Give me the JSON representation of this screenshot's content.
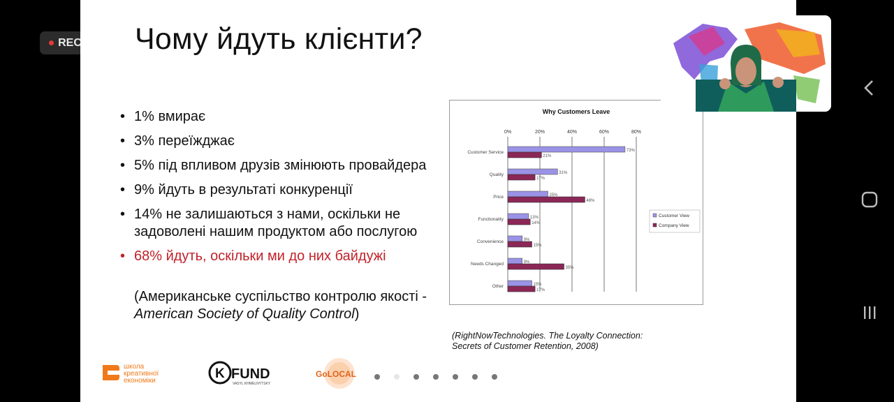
{
  "recording": {
    "label": "REC"
  },
  "slide": {
    "title": "Чому йдуть клієнти?",
    "bullets": [
      "1% вмирає",
      "3% переїжджає",
      "5% під впливом друзів змінюють провайдера",
      "9% йдуть в результаті конкуренції",
      "14% не залишаються з нами, оскільки не задоволені нашим продуктом або послугою",
      "68% йдуть, оскільки ми до них байдужі"
    ],
    "reference_prefix": "(Американське суспільство контролю якості - ",
    "reference_italic": "American Society of Quality Control",
    "reference_suffix": ")",
    "citation_line1": "(RightNowTechnologies. The Loyalty Connection:",
    "citation_line2": "Secrets of Customer Retention, 2008)",
    "logos": {
      "shk_line1": "школа",
      "shk_line2": "креативної",
      "shk_line3": "економіки",
      "kfund": "FUND",
      "kfund_sub": "VASYL KHMELNYTSKY",
      "golocal": "GoLOCAL"
    },
    "pagination": {
      "count": 7,
      "active_index": 1
    }
  },
  "chart_data": {
    "type": "bar",
    "orientation": "horizontal",
    "title": "Why Customers Leave",
    "categories": [
      "Customer Service",
      "Quality",
      "Price",
      "Functionality",
      "Convenience",
      "Needs Changed",
      "Other"
    ],
    "series": [
      {
        "name": "Customer View",
        "values": [
          73,
          31,
          25,
          13,
          9,
          9,
          15
        ],
        "color": "#9a92e6"
      },
      {
        "name": "Company View",
        "values": [
          21,
          17,
          48,
          14,
          15,
          35,
          17
        ],
        "color": "#8b2757"
      }
    ],
    "xlim": [
      0,
      80
    ],
    "xticks": [
      "0%",
      "20%",
      "40%",
      "60%",
      "80%"
    ],
    "value_labels": [
      [
        "73%",
        "21%"
      ],
      [
        "31%",
        "17%"
      ],
      [
        "25%",
        "48%"
      ],
      [
        "13%",
        "14%"
      ],
      [
        "9%",
        "15%"
      ],
      [
        "9%",
        "35%"
      ],
      [
        "15%",
        "17%"
      ]
    ],
    "legend": "right",
    "source": "Source: RightNowTechnologies, The Loyalty Connection: Secrets to Customer Retention, 2008"
  },
  "colors": {
    "highlight": "#c0222a",
    "logo_orange": "#f07a1a"
  },
  "android_nav": {
    "back": "back-icon",
    "home": "home-icon",
    "recents": "recents-icon"
  }
}
